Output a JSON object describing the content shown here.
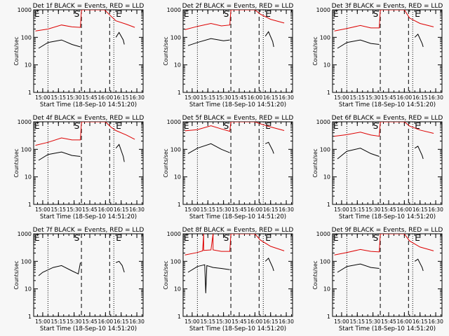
{
  "chart_data": [
    {
      "type": "line",
      "title": "Det 1f BLACK = Events, RED = LLD",
      "xlabel": "Start Time (18-Sep-10 14:51:20)",
      "ylabel": "Counts/sec",
      "x_ticks": [
        "15:00",
        "15:15",
        "15:30",
        "15:45",
        "16:00",
        "16:15",
        "16:30"
      ],
      "y_ticks": [
        "1",
        "10",
        "100",
        "1000"
      ],
      "ylim": [
        1,
        1000
      ],
      "y_scale": "log",
      "markers": {
        "E_left": "E",
        "S": "S",
        "E_right": "E"
      },
      "series": [
        {
          "color": "#dd0000",
          "points": [
            [
              "14:53",
              170
            ],
            [
              "15:05",
              200
            ],
            [
              "15:18",
              280
            ],
            [
              "15:28",
              240
            ],
            [
              "15:36",
              230
            ],
            [
              "15:37",
              1000
            ],
            [
              "15:59",
              1000
            ],
            [
              "16:05",
              600
            ],
            [
              "16:10",
              400
            ],
            [
              "16:20",
              300
            ],
            [
              "16:28",
              230
            ]
          ]
        },
        {
          "color": "#000000",
          "points": [
            [
              "14:56",
              40
            ],
            [
              "15:05",
              65
            ],
            [
              "15:18",
              80
            ],
            [
              "15:28",
              55
            ],
            [
              "15:36",
              45
            ]
          ]
        },
        {
          "color": "#000000",
          "points": [
            [
              "16:10",
              100
            ],
            [
              "16:13",
              150
            ],
            [
              "16:17",
              80
            ],
            [
              "16:18",
              55
            ]
          ]
        }
      ]
    },
    {
      "type": "line",
      "title": "Det 2f BLACK = Events, RED = LLD",
      "xlabel": "Start Time (18-Sep-10 14:51:20)",
      "ylabel": "Counts/sec",
      "x_ticks": [
        "15:00",
        "15:15",
        "15:30",
        "15:45",
        "16:00",
        "16:15",
        "16:30"
      ],
      "y_ticks": [
        "1",
        "10",
        "100",
        "1000"
      ],
      "ylim": [
        1,
        1000
      ],
      "y_scale": "log",
      "markers": {
        "E_left": "E",
        "S": "S",
        "E_right": "E"
      },
      "series": [
        {
          "color": "#dd0000",
          "points": [
            [
              "14:53",
              190
            ],
            [
              "15:05",
              250
            ],
            [
              "15:18",
              320
            ],
            [
              "15:28",
              260
            ],
            [
              "15:36",
              280
            ],
            [
              "15:37",
              1000
            ],
            [
              "16:00",
              1000
            ],
            [
              "16:05",
              700
            ],
            [
              "16:15",
              450
            ],
            [
              "16:28",
              330
            ]
          ]
        },
        {
          "color": "#000000",
          "points": [
            [
              "14:56",
              50
            ],
            [
              "15:05",
              65
            ],
            [
              "15:18",
              90
            ],
            [
              "15:30",
              75
            ],
            [
              "15:36",
              80
            ]
          ]
        },
        {
          "color": "#000000",
          "points": [
            [
              "16:10",
              110
            ],
            [
              "16:13",
              160
            ],
            [
              "16:17",
              70
            ],
            [
              "16:18",
              45
            ]
          ]
        }
      ]
    },
    {
      "type": "line",
      "title": "Det 3f BLACK = Events, RED = LLD",
      "xlabel": "Start Time (18-Sep-10 14:51:20)",
      "ylabel": "Counts/sec",
      "x_ticks": [
        "15:00",
        "15:15",
        "15:30",
        "15:45",
        "16:00",
        "16:15",
        "16:30"
      ],
      "y_ticks": [
        "1",
        "10",
        "100",
        "1000"
      ],
      "ylim": [
        1,
        1000
      ],
      "y_scale": "log",
      "markers": {
        "E_left": "E",
        "S": "S",
        "E_right": "E"
      },
      "series": [
        {
          "color": "#dd0000",
          "points": [
            [
              "14:53",
              170
            ],
            [
              "15:05",
              210
            ],
            [
              "15:18",
              270
            ],
            [
              "15:28",
              220
            ],
            [
              "15:36",
              220
            ],
            [
              "15:37",
              1000
            ],
            [
              "16:00",
              1000
            ],
            [
              "16:05",
              500
            ],
            [
              "16:15",
              320
            ],
            [
              "16:28",
              240
            ]
          ]
        },
        {
          "color": "#000000",
          "points": [
            [
              "14:56",
              40
            ],
            [
              "15:05",
              65
            ],
            [
              "15:18",
              80
            ],
            [
              "15:28",
              60
            ],
            [
              "15:36",
              55
            ]
          ]
        },
        {
          "color": "#000000",
          "points": [
            [
              "16:10",
              100
            ],
            [
              "16:13",
              130
            ],
            [
              "16:17",
              60
            ],
            [
              "16:18",
              45
            ]
          ]
        }
      ]
    },
    {
      "type": "line",
      "title": "Det 4f BLACK = Events, RED = LLD",
      "xlabel": "Start Time (18-Sep-10 14:51:20)",
      "ylabel": "Counts/sec",
      "x_ticks": [
        "15:00",
        "15:15",
        "15:30",
        "15:45",
        "16:00",
        "16:15",
        "16:30"
      ],
      "y_ticks": [
        "1",
        "10",
        "100",
        "1000"
      ],
      "ylim": [
        1,
        1000
      ],
      "y_scale": "log",
      "markers": {
        "E_left": "E",
        "S": "S",
        "E_right": "E"
      },
      "series": [
        {
          "color": "#dd0000",
          "points": [
            [
              "14:53",
              140
            ],
            [
              "15:05",
              180
            ],
            [
              "15:18",
              260
            ],
            [
              "15:28",
              220
            ],
            [
              "15:36",
              220
            ],
            [
              "15:37",
              1000
            ],
            [
              "16:00",
              1000
            ],
            [
              "16:05",
              650
            ],
            [
              "16:10",
              480
            ],
            [
              "16:20",
              330
            ],
            [
              "16:28",
              230
            ]
          ]
        },
        {
          "color": "#000000",
          "points": [
            [
              "14:56",
              40
            ],
            [
              "15:05",
              65
            ],
            [
              "15:18",
              80
            ],
            [
              "15:28",
              60
            ],
            [
              "15:36",
              55
            ]
          ]
        },
        {
          "color": "#000000",
          "points": [
            [
              "16:10",
              110
            ],
            [
              "16:13",
              150
            ],
            [
              "16:17",
              55
            ],
            [
              "16:18",
              35
            ]
          ]
        }
      ]
    },
    {
      "type": "line",
      "title": "Det 5f BLACK = Events, RED = LLD",
      "xlabel": "Start Time (18-Sep-10 14:51:20)",
      "ylabel": "Counts/sec",
      "x_ticks": [
        "15:00",
        "15:15",
        "15:30",
        "15:45",
        "16:00",
        "16:15",
        "16:30"
      ],
      "y_ticks": [
        "1",
        "10",
        "100",
        "1000"
      ],
      "ylim": [
        1,
        1000
      ],
      "y_scale": "log",
      "markers": {
        "E_left": "E",
        "S": "S",
        "E_right": "E"
      },
      "series": [
        {
          "color": "#dd0000",
          "points": [
            [
              "14:53",
              470
            ],
            [
              "15:05",
              520
            ],
            [
              "15:18",
              720
            ],
            [
              "15:28",
              550
            ],
            [
              "15:36",
              450
            ],
            [
              "15:37",
              1000
            ],
            [
              "16:00",
              1000
            ],
            [
              "16:05",
              850
            ],
            [
              "16:15",
              650
            ],
            [
              "16:28",
              480
            ]
          ]
        },
        {
          "color": "#000000",
          "points": [
            [
              "14:56",
              70
            ],
            [
              "15:05",
              110
            ],
            [
              "15:18",
              160
            ],
            [
              "15:28",
              100
            ],
            [
              "15:36",
              75
            ]
          ]
        },
        {
          "color": "#000000",
          "points": [
            [
              "16:10",
              160
            ],
            [
              "16:13",
              180
            ],
            [
              "16:17",
              90
            ],
            [
              "16:18",
              70
            ]
          ]
        }
      ]
    },
    {
      "type": "line",
      "title": "Det 6f BLACK = Events, RED = LLD",
      "xlabel": "Start Time (18-Sep-10 14:51:20)",
      "ylabel": "Counts/sec",
      "x_ticks": [
        "15:00",
        "15:15",
        "15:30",
        "15:45",
        "16:00",
        "16:15",
        "16:30"
      ],
      "y_ticks": [
        "1",
        "10",
        "100",
        "1000"
      ],
      "ylim": [
        1,
        1000
      ],
      "y_scale": "log",
      "markers": {
        "E_left": "E",
        "S": "S",
        "E_right": "E"
      },
      "series": [
        {
          "color": "#dd0000",
          "points": [
            [
              "14:53",
              300
            ],
            [
              "15:05",
              340
            ],
            [
              "15:18",
              420
            ],
            [
              "15:28",
              330
            ],
            [
              "15:36",
              300
            ],
            [
              "15:37",
              1000
            ],
            [
              "16:00",
              1000
            ],
            [
              "16:05",
              700
            ],
            [
              "16:15",
              500
            ],
            [
              "16:28",
              380
            ]
          ]
        },
        {
          "color": "#000000",
          "points": [
            [
              "14:56",
              45
            ],
            [
              "15:05",
              85
            ],
            [
              "15:18",
              110
            ],
            [
              "15:28",
              70
            ],
            [
              "15:36",
              55
            ]
          ]
        },
        {
          "color": "#000000",
          "points": [
            [
              "16:10",
              110
            ],
            [
              "16:13",
              130
            ],
            [
              "16:17",
              60
            ],
            [
              "16:18",
              45
            ]
          ]
        }
      ]
    },
    {
      "type": "line",
      "title": "Det 7f BLACK = Events, RED = LLD",
      "xlabel": "Start Time (18-Sep-10 14:51:20)",
      "ylabel": "Counts/sec",
      "x_ticks": [
        "15:00",
        "15:15",
        "15:30",
        "15:45",
        "16:00",
        "16:15",
        "16:30"
      ],
      "y_ticks": [
        "1",
        "10",
        "100",
        "1000"
      ],
      "ylim": [
        1,
        1000
      ],
      "y_scale": "log",
      "markers": {
        "E_left": "E",
        "S": "S",
        "E_right": "E"
      },
      "series": [
        {
          "color": "#000000",
          "points": [
            [
              "14:56",
              30
            ],
            [
              "15:00",
              40
            ],
            [
              "15:10",
              60
            ],
            [
              "15:18",
              70
            ],
            [
              "15:28",
              45
            ],
            [
              "15:34",
              35
            ],
            [
              "15:36",
              90
            ]
          ]
        },
        {
          "color": "#000000",
          "points": [
            [
              "16:10",
              90
            ],
            [
              "16:13",
              100
            ],
            [
              "16:16",
              70
            ],
            [
              "16:18",
              40
            ]
          ]
        }
      ]
    },
    {
      "type": "line",
      "title": "Det 8f BLACK = Events, RED = LLD",
      "xlabel": "Start Time (18-Sep-10 14:51:20)",
      "ylabel": "Counts/sec",
      "x_ticks": [
        "15:00",
        "15:15",
        "15:30",
        "15:45",
        "16:00",
        "16:15",
        "16:30"
      ],
      "y_ticks": [
        "1",
        "10",
        "100",
        "1000"
      ],
      "ylim": [
        1,
        1000
      ],
      "y_scale": "log",
      "markers": {
        "E_left": "E",
        "S": "S",
        "E_right": "E"
      },
      "series": [
        {
          "color": "#dd0000",
          "points": [
            [
              "14:53",
              170
            ],
            [
              "15:05",
              210
            ],
            [
              "15:10",
              240
            ],
            [
              "15:11",
              1000
            ],
            [
              "15:11",
              250
            ],
            [
              "15:18",
              260
            ],
            [
              "15:20",
              1000
            ],
            [
              "15:20",
              260
            ],
            [
              "15:28",
              230
            ],
            [
              "15:36",
              230
            ],
            [
              "15:37",
              1000
            ],
            [
              "16:00",
              1000
            ],
            [
              "16:05",
              600
            ],
            [
              "16:15",
              350
            ],
            [
              "16:28",
              240
            ]
          ]
        },
        {
          "color": "#000000",
          "points": [
            [
              "14:56",
              40
            ],
            [
              "15:05",
              65
            ],
            [
              "15:12",
              75
            ],
            [
              "15:13",
              7
            ],
            [
              "15:14",
              70
            ],
            [
              "15:20",
              60
            ],
            [
              "15:28",
              55
            ],
            [
              "15:36",
              50
            ]
          ]
        },
        {
          "color": "#000000",
          "points": [
            [
              "16:10",
              100
            ],
            [
              "16:13",
              130
            ],
            [
              "16:17",
              60
            ],
            [
              "16:18",
              45
            ]
          ]
        }
      ]
    },
    {
      "type": "line",
      "title": "Det 9f BLACK = Events, RED = LLD",
      "xlabel": "Start Time (18-Sep-10 14:51:20)",
      "ylabel": "Counts/sec",
      "x_ticks": [
        "15:00",
        "15:15",
        "15:30",
        "15:45",
        "16:00",
        "16:15",
        "16:30"
      ],
      "y_ticks": [
        "1",
        "10",
        "100",
        "1000"
      ],
      "ylim": [
        1,
        1000
      ],
      "y_scale": "log",
      "markers": {
        "E_left": "E",
        "S": "S",
        "E_right": "E"
      },
      "series": [
        {
          "color": "#dd0000",
          "points": [
            [
              "14:53",
              170
            ],
            [
              "15:05",
              210
            ],
            [
              "15:18",
              270
            ],
            [
              "15:28",
              230
            ],
            [
              "15:36",
              220
            ],
            [
              "15:37",
              1000
            ],
            [
              "16:00",
              1000
            ],
            [
              "16:05",
              550
            ],
            [
              "16:15",
              330
            ],
            [
              "16:28",
              240
            ]
          ]
        },
        {
          "color": "#000000",
          "points": [
            [
              "14:56",
              40
            ],
            [
              "15:05",
              65
            ],
            [
              "15:18",
              80
            ],
            [
              "15:28",
              60
            ],
            [
              "15:36",
              55
            ]
          ]
        },
        {
          "color": "#000000",
          "points": [
            [
              "16:10",
              100
            ],
            [
              "16:13",
              120
            ],
            [
              "16:17",
              60
            ],
            [
              "16:18",
              45
            ]
          ]
        }
      ]
    }
  ]
}
